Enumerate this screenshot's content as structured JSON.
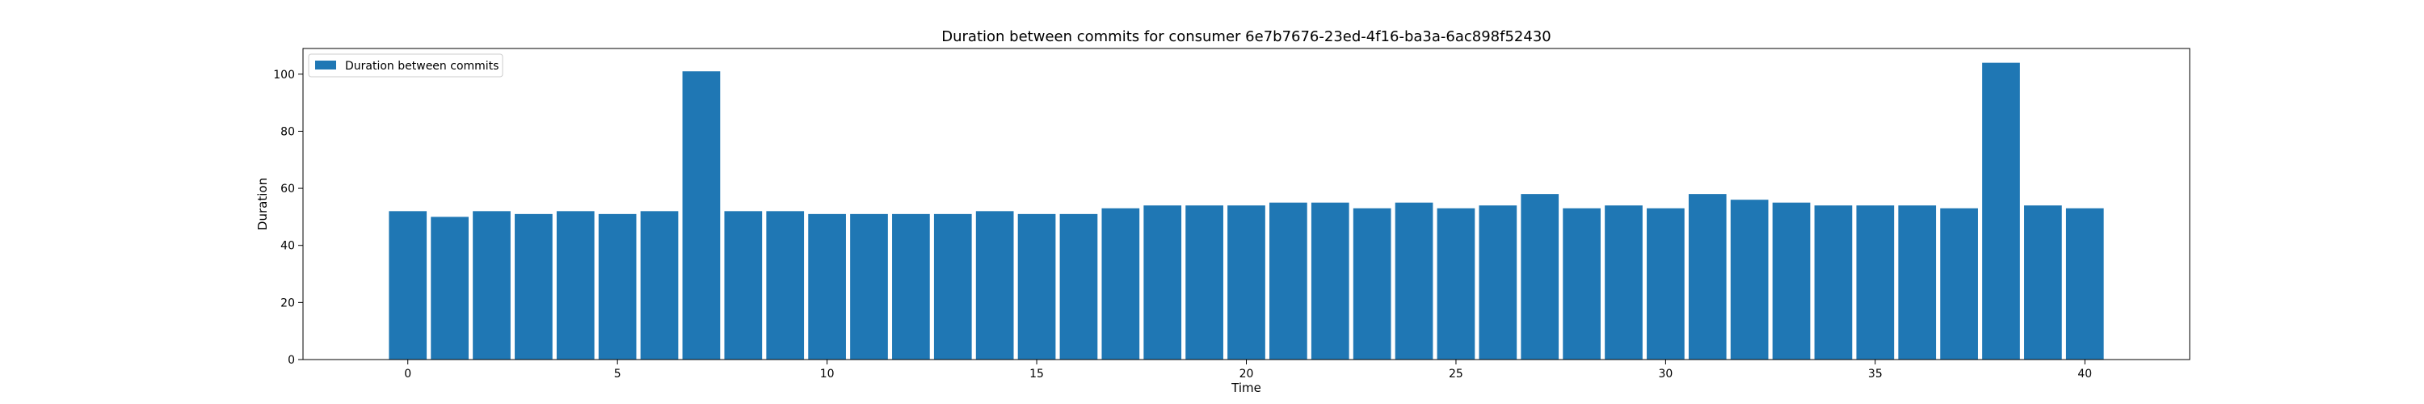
{
  "chart_data": {
    "type": "bar",
    "title": "Duration between commits for consumer 6e7b7676-23ed-4f16-ba3a-6ac898f52430",
    "xlabel": "Time",
    "ylabel": "Duration",
    "xlim": [
      -2.5,
      42.5
    ],
    "ylim": [
      0,
      109
    ],
    "x_ticks": [
      0,
      5,
      10,
      15,
      20,
      25,
      30,
      35,
      40
    ],
    "y_ticks": [
      0,
      20,
      40,
      60,
      80,
      100
    ],
    "grid": false,
    "legend_position": "upper-left",
    "bar_color": "#1f77b4",
    "series": [
      {
        "name": "Duration between commits",
        "x": [
          0,
          1,
          2,
          3,
          4,
          5,
          6,
          7,
          8,
          9,
          10,
          11,
          12,
          13,
          14,
          15,
          16,
          17,
          18,
          19,
          20,
          21,
          22,
          23,
          24,
          25,
          26,
          27,
          28,
          29,
          30,
          31,
          32,
          33,
          34,
          35,
          36,
          37,
          38,
          39,
          40
        ],
        "values": [
          52,
          50,
          52,
          51,
          52,
          51,
          52,
          101,
          52,
          52,
          51,
          51,
          51,
          51,
          52,
          51,
          51,
          53,
          54,
          54,
          54,
          55,
          55,
          53,
          55,
          53,
          54,
          58,
          53,
          54,
          53,
          58,
          56,
          55,
          54,
          54,
          54,
          53,
          104,
          54,
          53
        ]
      }
    ]
  }
}
